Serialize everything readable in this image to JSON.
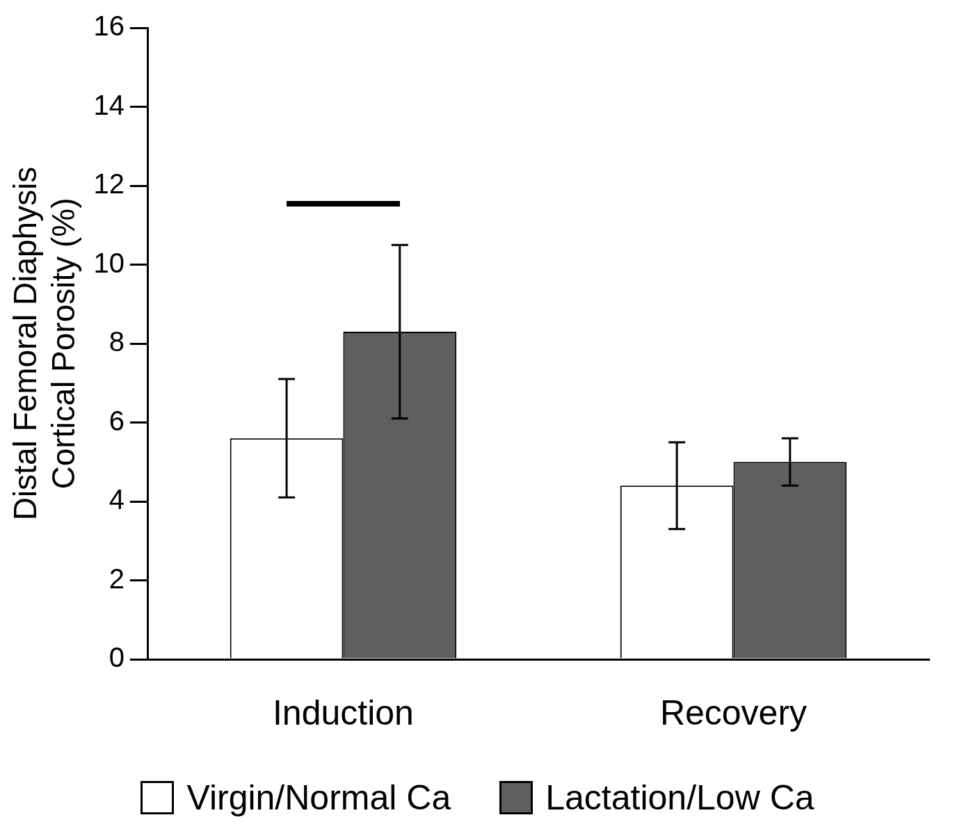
{
  "chart_data": {
    "type": "bar",
    "ylabel": "Distal Femoral Diaphysis Cortical Porosity (%)",
    "categories": [
      "Induction",
      "Recovery"
    ],
    "series": [
      {
        "name": "Virgin/Normal Ca",
        "color": "#ffffff",
        "values": [
          5.6,
          4.4
        ],
        "errors": [
          1.5,
          1.1
        ]
      },
      {
        "name": "Lactation/Low Ca",
        "color": "#5f5f5f",
        "values": [
          8.3,
          5.0
        ],
        "errors": [
          2.2,
          0.6
        ]
      }
    ],
    "ylim": [
      0,
      16
    ],
    "yticks": [
      0,
      2,
      4,
      6,
      8,
      10,
      12,
      14,
      16
    ],
    "grid": false,
    "legend": "bottom"
  }
}
